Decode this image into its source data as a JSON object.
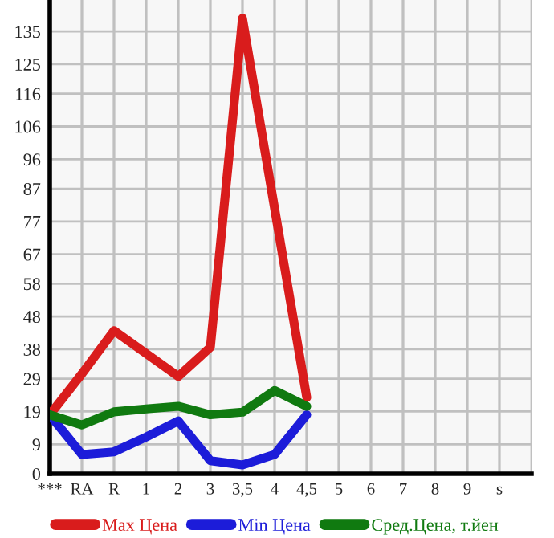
{
  "chart_data": {
    "type": "line",
    "categories": [
      "***",
      "RA",
      "R",
      "1",
      "2",
      "3",
      "3,5",
      "4",
      "4,5",
      "5",
      "6",
      "7",
      "8",
      "9",
      "s"
    ],
    "series": [
      {
        "name": "Max Цена",
        "color": "#d91c1c",
        "values": [
          18,
          30.5,
          43.7,
          36.7,
          29.7,
          38.6,
          139,
          81,
          23.3,
          null,
          null,
          null,
          null,
          null,
          null
        ]
      },
      {
        "name": "Min Цена",
        "color": "#1c1cd9",
        "values": [
          18,
          5.9,
          6.7,
          11.2,
          16.1,
          4.0,
          2.7,
          5.9,
          18,
          null,
          null,
          null,
          null,
          null,
          null
        ]
      },
      {
        "name": "Сред.Цена, т.йен",
        "color": "#107a10",
        "values": [
          18,
          14.9,
          18.9,
          19.8,
          20.6,
          18,
          18.8,
          25.4,
          20.6,
          null,
          null,
          null,
          null,
          null,
          null
        ]
      }
    ],
    "ylim": [
      0,
      144.6
    ],
    "yticks": [
      0,
      9,
      19,
      29,
      38,
      48,
      58,
      67,
      77,
      87,
      96,
      106,
      116,
      125,
      135
    ],
    "grid": true,
    "legend": "bottom",
    "marker": "none",
    "line_style": "solid"
  }
}
